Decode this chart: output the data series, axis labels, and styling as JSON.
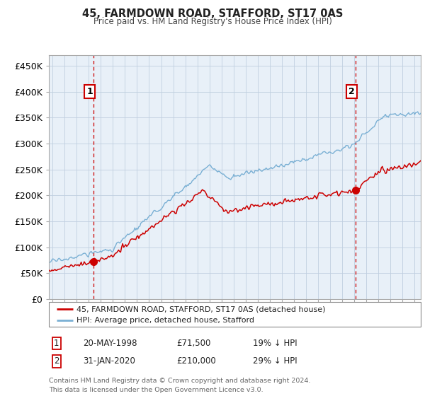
{
  "title": "45, FARMDOWN ROAD, STAFFORD, ST17 0AS",
  "subtitle": "Price paid vs. HM Land Registry's House Price Index (HPI)",
  "ylabel_ticks": [
    "£0",
    "£50K",
    "£100K",
    "£150K",
    "£200K",
    "£250K",
    "£300K",
    "£350K",
    "£400K",
    "£450K"
  ],
  "ytick_vals": [
    0,
    50000,
    100000,
    150000,
    200000,
    250000,
    300000,
    350000,
    400000,
    450000
  ],
  "ylim": [
    0,
    470000
  ],
  "xlim_start": 1994.7,
  "xlim_end": 2025.5,
  "red_color": "#cc0000",
  "blue_color": "#7ab0d4",
  "plot_bg_color": "#e8f0f8",
  "marker1_x": 1998.38,
  "marker1_y": 71500,
  "marker2_x": 2020.08,
  "marker2_y": 210000,
  "annotation1_label": "1",
  "annotation2_label": "2",
  "legend_line1": "45, FARMDOWN ROAD, STAFFORD, ST17 0AS (detached house)",
  "legend_line2": "HPI: Average price, detached house, Stafford",
  "footer": "Contains HM Land Registry data © Crown copyright and database right 2024.\nThis data is licensed under the Open Government Licence v3.0.",
  "background_color": "#ffffff",
  "grid_color": "#c0cfe0"
}
